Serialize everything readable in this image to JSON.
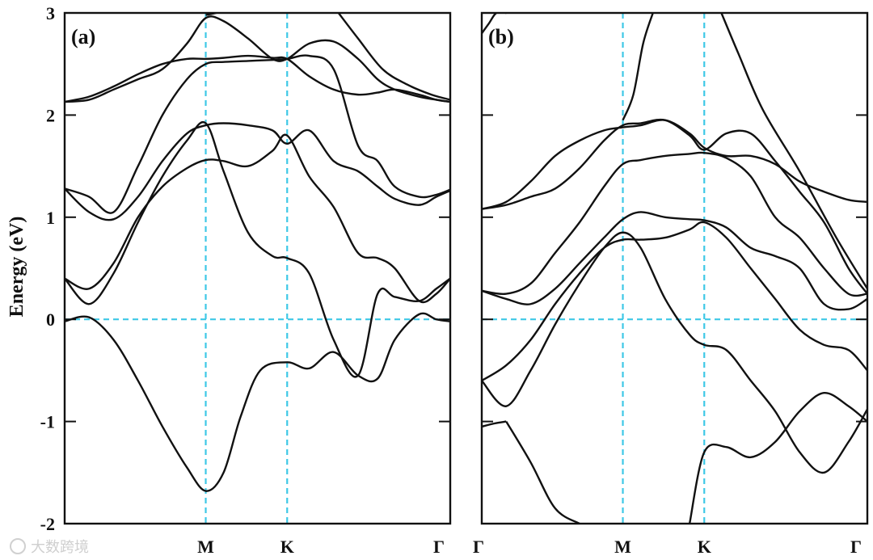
{
  "chart_data": {
    "type": "line",
    "ylabel": "Energy (eV)",
    "ylim": [
      -2,
      3
    ],
    "yticks": [
      -2,
      -1,
      0,
      1,
      2,
      3
    ],
    "x_ticks": [
      "Γ",
      "M",
      "K",
      "Γ"
    ],
    "x_positions": [
      0,
      0.577,
      0.91,
      1.577
    ],
    "reference_line_color": "#3ec8e6",
    "line_color": "#111111",
    "panels": [
      {
        "label": "(a)",
        "bands": [
          {
            "name": "band-1",
            "x": [
              0,
              0.1,
              0.2,
              0.3,
              0.4,
              0.5,
              0.577,
              0.65,
              0.72,
              0.8,
              0.91,
              1.0,
              1.1,
              1.2,
              1.28,
              1.35,
              1.45,
              1.52,
              1.577
            ],
            "y": [
              -0.02,
              0.02,
              -0.2,
              -0.6,
              -1.05,
              -1.45,
              -1.68,
              -1.5,
              -0.95,
              -0.5,
              -0.42,
              -0.48,
              -0.32,
              -0.55,
              -0.58,
              -0.2,
              0.05,
              0.0,
              -0.02
            ]
          },
          {
            "name": "band-2",
            "x": [
              0,
              0.1,
              0.2,
              0.3,
              0.4,
              0.5,
              0.577,
              0.65,
              0.75,
              0.85,
              0.91,
              1.0,
              1.1,
              1.2,
              1.28,
              1.35,
              1.45,
              1.52,
              1.577
            ],
            "y": [
              0.4,
              0.15,
              0.45,
              0.95,
              1.4,
              1.75,
              1.92,
              1.45,
              0.85,
              0.62,
              0.6,
              0.45,
              -0.2,
              -0.55,
              0.25,
              0.22,
              0.18,
              0.3,
              0.4
            ]
          },
          {
            "name": "band-3",
            "x": [
              0,
              0.1,
              0.2,
              0.3,
              0.4,
              0.5,
              0.577,
              0.65,
              0.75,
              0.85,
              0.91,
              1.0,
              1.1,
              1.2,
              1.28,
              1.35,
              1.45,
              1.52,
              1.577
            ],
            "y": [
              0.4,
              0.3,
              0.55,
              1.0,
              1.3,
              1.48,
              1.56,
              1.55,
              1.5,
              1.65,
              1.8,
              1.4,
              1.1,
              0.65,
              0.6,
              0.5,
              0.18,
              0.25,
              0.4
            ]
          },
          {
            "name": "band-4",
            "x": [
              0,
              0.1,
              0.2,
              0.3,
              0.4,
              0.5,
              0.577,
              0.65,
              0.75,
              0.85,
              0.91,
              1.0,
              1.1,
              1.2,
              1.28,
              1.35,
              1.45,
              1.52,
              1.577
            ],
            "y": [
              1.28,
              1.05,
              0.98,
              1.2,
              1.55,
              1.82,
              1.9,
              1.92,
              1.9,
              1.85,
              1.72,
              1.85,
              1.55,
              1.45,
              1.3,
              1.18,
              1.12,
              1.2,
              1.26
            ]
          },
          {
            "name": "band-5",
            "x": [
              0,
              0.1,
              0.2,
              0.3,
              0.4,
              0.5,
              0.577,
              0.65,
              0.75,
              0.85,
              0.91,
              1.0,
              1.1,
              1.2,
              1.28,
              1.35,
              1.45,
              1.52,
              1.577
            ],
            "y": [
              1.28,
              1.2,
              1.05,
              1.5,
              2.0,
              2.35,
              2.5,
              2.52,
              2.53,
              2.54,
              2.55,
              2.58,
              2.45,
              1.7,
              1.55,
              1.3,
              1.2,
              1.22,
              1.27
            ]
          },
          {
            "name": "band-6",
            "x": [
              0,
              0.1,
              0.2,
              0.3,
              0.4,
              0.5,
              0.577,
              0.65,
              0.75,
              0.85,
              0.91,
              1.0,
              1.1,
              1.2,
              1.28,
              1.35,
              1.45,
              1.52,
              1.577
            ],
            "y": [
              2.13,
              2.18,
              2.28,
              2.4,
              2.5,
              2.55,
              2.55,
              2.56,
              2.58,
              2.56,
              2.55,
              2.38,
              2.25,
              2.2,
              2.22,
              2.25,
              2.2,
              2.15,
              2.13
            ]
          },
          {
            "name": "band-7",
            "x": [
              0,
              0.1,
              0.2,
              0.3,
              0.4,
              0.5,
              0.577,
              0.65,
              0.75,
              0.85,
              0.91,
              1.0,
              1.1,
              1.2,
              1.28,
              1.35,
              1.45,
              1.52,
              1.577
            ],
            "y": [
              2.13,
              2.15,
              2.25,
              2.35,
              2.45,
              2.7,
              2.95,
              2.92,
              2.75,
              2.55,
              2.55,
              2.7,
              2.72,
              2.55,
              2.35,
              2.25,
              2.18,
              2.15,
              2.13
            ]
          },
          {
            "name": "band-8",
            "x": [
              0.577,
              0.6,
              0.62
            ],
            "y": [
              2.98,
              2.99,
              3.0
            ]
          },
          {
            "name": "band-9",
            "x": [
              1.12,
              1.2,
              1.3,
              1.4,
              1.5,
              1.577
            ],
            "y": [
              3.0,
              2.75,
              2.45,
              2.3,
              2.2,
              2.15
            ]
          }
        ]
      },
      {
        "label": "(b)",
        "bands": [
          {
            "name": "band-1",
            "x": [
              0,
              0.05,
              0.1
            ],
            "y": [
              -1.05,
              -1.02,
              -1.0
            ]
          },
          {
            "name": "band-2",
            "x": [
              0.1,
              0.2,
              0.3,
              0.4
            ],
            "y": [
              -1.0,
              -1.4,
              -1.85,
              -2.0
            ]
          },
          {
            "name": "band-3",
            "x": [
              0.85,
              0.91,
              1.0,
              1.1,
              1.2,
              1.3,
              1.4,
              1.5,
              1.577
            ],
            "y": [
              -2.0,
              -1.3,
              -1.25,
              -1.35,
              -1.2,
              -0.9,
              -0.72,
              -0.85,
              -1.0
            ]
          },
          {
            "name": "band-4",
            "x": [
              0,
              0.1,
              0.2,
              0.3,
              0.4,
              0.5,
              0.577,
              0.65,
              0.75,
              0.85,
              0.91,
              1.0,
              1.1,
              1.2,
              1.3,
              1.4,
              1.5,
              1.577
            ],
            "y": [
              -0.6,
              -0.85,
              -0.5,
              -0.05,
              0.35,
              0.7,
              0.85,
              0.7,
              0.2,
              -0.15,
              -0.25,
              -0.3,
              -0.6,
              -0.9,
              -1.3,
              -1.5,
              -1.2,
              -0.88
            ]
          },
          {
            "name": "band-5",
            "x": [
              0,
              0.1,
              0.2,
              0.3,
              0.4,
              0.5,
              0.577,
              0.65,
              0.75,
              0.85,
              0.91,
              1.0,
              1.1,
              1.2,
              1.3,
              1.4,
              1.5,
              1.577
            ],
            "y": [
              -0.6,
              -0.45,
              -0.2,
              0.15,
              0.45,
              0.7,
              0.78,
              0.78,
              0.8,
              0.88,
              0.95,
              0.8,
              0.5,
              0.2,
              -0.1,
              -0.25,
              -0.3,
              -0.5
            ]
          },
          {
            "name": "band-6",
            "x": [
              0,
              0.1,
              0.2,
              0.3,
              0.4,
              0.5,
              0.577,
              0.65,
              0.75,
              0.85,
              0.91,
              1.0,
              1.1,
              1.2,
              1.3,
              1.4,
              1.5,
              1.577
            ],
            "y": [
              0.28,
              0.2,
              0.15,
              0.3,
              0.55,
              0.8,
              0.98,
              1.05,
              1.0,
              0.98,
              0.97,
              0.9,
              0.7,
              0.62,
              0.5,
              0.15,
              0.1,
              0.2
            ]
          },
          {
            "name": "band-7",
            "x": [
              0,
              0.1,
              0.2,
              0.3,
              0.4,
              0.5,
              0.577,
              0.65,
              0.75,
              0.85,
              0.91,
              1.0,
              1.1,
              1.2,
              1.3,
              1.4,
              1.5,
              1.577
            ],
            "y": [
              0.28,
              0.25,
              0.35,
              0.65,
              0.95,
              1.3,
              1.52,
              1.56,
              1.6,
              1.62,
              1.63,
              1.58,
              1.4,
              1.0,
              0.8,
              0.5,
              0.25,
              0.25
            ]
          },
          {
            "name": "band-8",
            "x": [
              0,
              0.1,
              0.2,
              0.3,
              0.4,
              0.5,
              0.577,
              0.65,
              0.75,
              0.85,
              0.91,
              1.0,
              1.1,
              1.2,
              1.3,
              1.4,
              1.5,
              1.577
            ],
            "y": [
              1.08,
              1.12,
              1.2,
              1.28,
              1.48,
              1.75,
              1.9,
              1.92,
              1.95,
              1.8,
              1.66,
              1.82,
              1.82,
              1.55,
              1.25,
              0.95,
              0.5,
              0.25
            ]
          },
          {
            "name": "band-9",
            "x": [
              0,
              0.1,
              0.2,
              0.3,
              0.4,
              0.5,
              0.577,
              0.65,
              0.75,
              0.85,
              0.91,
              1.0,
              1.1,
              1.2,
              1.3,
              1.4,
              1.5,
              1.577
            ],
            "y": [
              1.08,
              1.15,
              1.35,
              1.6,
              1.75,
              1.85,
              1.88,
              1.9,
              1.95,
              1.82,
              1.68,
              1.6,
              1.6,
              1.52,
              1.35,
              1.25,
              1.17,
              1.15
            ]
          },
          {
            "name": "band-10",
            "x": [
              0.577,
              0.62,
              0.66,
              0.7
            ],
            "y": [
              1.95,
              2.2,
              2.7,
              3.0
            ]
          },
          {
            "name": "band-11",
            "x": [
              0,
              0.03,
              0.06,
              0.1
            ],
            "y": [
              2.8,
              2.9,
              3.0,
              3.0
            ]
          },
          {
            "name": "band-12",
            "x": [
              0.98,
              1.05,
              1.15,
              1.3,
              1.45,
              1.577
            ],
            "y": [
              3.0,
              2.6,
              2.05,
              1.45,
              0.8,
              0.3
            ]
          }
        ]
      }
    ]
  },
  "watermark": "大数跨境"
}
